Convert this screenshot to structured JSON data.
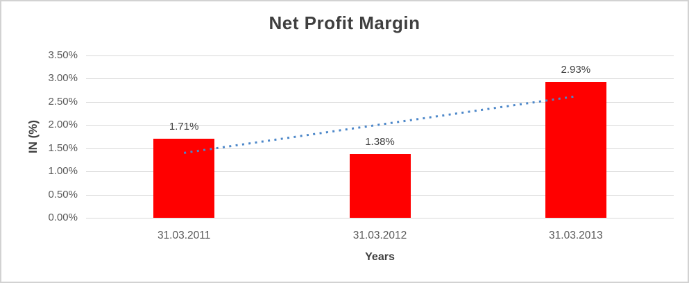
{
  "chart_data": {
    "type": "bar",
    "title": "Net Profit Margin",
    "xlabel": "Years",
    "ylabel": "IN (%)",
    "categories": [
      "31.03.2011",
      "31.03.2012",
      "31.03.2013"
    ],
    "values": [
      1.71,
      1.38,
      2.93
    ],
    "data_labels": [
      "1.71%",
      "1.38%",
      "2.93%"
    ],
    "ylim": [
      0,
      3.5
    ],
    "ytick_step": 0.5,
    "ytick_labels": [
      "0.00%",
      "0.50%",
      "1.00%",
      "1.50%",
      "2.00%",
      "2.50%",
      "3.00%",
      "3.50%"
    ],
    "grid": true,
    "legend_position": "none",
    "bar_color": "#ff0000",
    "trendline": {
      "type": "linear",
      "style": "dotted",
      "color": "#4c87c9",
      "start_value": 1.4,
      "end_value": 2.62
    }
  },
  "colors": {
    "title_text": "#3f3f3f",
    "axis_text": "#595959",
    "axis_title_text": "#404040",
    "data_label_text": "#404040",
    "gridline": "#d9d9d9",
    "frame_border": "#d2d2d2",
    "background": "#ffffff"
  }
}
